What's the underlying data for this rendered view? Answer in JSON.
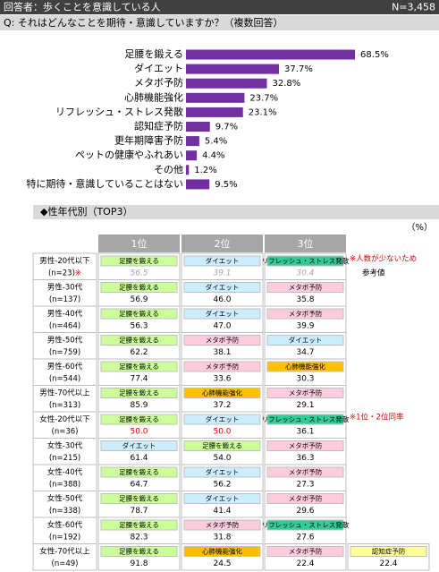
{
  "header": {
    "respondent": "回答者：歩くことを意識している人",
    "n": "N=3,458"
  },
  "question": "Q:  それはどんなことを期待・意識していますか？（複数回答）",
  "chart_data": {
    "type": "bar",
    "orientation": "horizontal",
    "color": "#7030a0",
    "categories": [
      "足腰を鍛える",
      "ダイエット",
      "メタボ予防",
      "心肺機能強化",
      "リフレッシュ・ストレス発散",
      "認知症予防",
      "更年期障害予防",
      "ペットの健康やふれあい",
      "その他",
      "特に期待・意識していることはない"
    ],
    "values": [
      68.5,
      37.7,
      32.8,
      23.7,
      23.1,
      9.7,
      5.4,
      4.4,
      1.2,
      9.5
    ],
    "value_labels": [
      "68.5%",
      "37.7%",
      "32.8%",
      "23.7%",
      "23.1%",
      "9.7%",
      "5.4%",
      "4.4%",
      "1.2%",
      "9.5%"
    ]
  },
  "section_title": "◆性年代別（TOP3）",
  "unit": "（%）",
  "table": {
    "columns": [
      "1位",
      "2位",
      "3位"
    ],
    "rows": [
      {
        "label": "男性-20代以下",
        "n": "(n=23)",
        "mark": "※",
        "value_color": "#a6a6a6",
        "note": [
          "※人数が少ないため",
          "参考値"
        ],
        "note_colors": [
          "#e00000",
          "#000000"
        ],
        "cells": [
          {
            "item": "足腰を鍛える",
            "value": "56.5",
            "color": "#ccff99"
          },
          {
            "item": "ダイエット",
            "value": "39.1",
            "color": "#ccecff"
          },
          {
            "item": "リフレッシュ・ストレス発散",
            "value": "30.4",
            "color": "#33cc99"
          }
        ]
      },
      {
        "label": "男性-30代",
        "n": "(n=137)",
        "cells": [
          {
            "item": "足腰を鍛える",
            "value": "56.9",
            "color": "#ccff99"
          },
          {
            "item": "ダイエット",
            "value": "46.0",
            "color": "#ccecff"
          },
          {
            "item": "メタボ予防",
            "value": "35.8",
            "color": "#ffccdd"
          }
        ]
      },
      {
        "label": "男性-40代",
        "n": "(n=464)",
        "cells": [
          {
            "item": "足腰を鍛える",
            "value": "56.3",
            "color": "#ccff99"
          },
          {
            "item": "ダイエット",
            "value": "47.0",
            "color": "#ccecff"
          },
          {
            "item": "メタボ予防",
            "value": "39.9",
            "color": "#ffccdd"
          }
        ]
      },
      {
        "label": "男性-50代",
        "n": "(n=759)",
        "cells": [
          {
            "item": "足腰を鍛える",
            "value": "62.2",
            "color": "#ccff99"
          },
          {
            "item": "メタボ予防",
            "value": "38.1",
            "color": "#ffccdd"
          },
          {
            "item": "ダイエット",
            "value": "34.7",
            "color": "#ccecff"
          }
        ]
      },
      {
        "label": "男性-60代",
        "n": "(n=544)",
        "cells": [
          {
            "item": "足腰を鍛える",
            "value": "77.4",
            "color": "#ccff99"
          },
          {
            "item": "メタボ予防",
            "value": "33.6",
            "color": "#ffccdd"
          },
          {
            "item": "心肺機能強化",
            "value": "30.3",
            "color": "#ffc000"
          }
        ]
      },
      {
        "label": "男性-70代以上",
        "n": "(n=313)",
        "cells": [
          {
            "item": "足腰を鍛える",
            "value": "85.9",
            "color": "#ccff99"
          },
          {
            "item": "心肺機能強化",
            "value": "37.2",
            "color": "#ffc000"
          },
          {
            "item": "メタボ予防",
            "value": "29.1",
            "color": "#ffccdd"
          }
        ]
      },
      {
        "label": "女性-20代以下",
        "n": "(n=36)",
        "note": [
          "※1位・2位同率"
        ],
        "note_colors": [
          "#e00000"
        ],
        "cells": [
          {
            "item": "足腰を鍛える",
            "value": "50.0",
            "color": "#ccff99",
            "value_color": "#e00000"
          },
          {
            "item": "ダイエット",
            "value": "50.0",
            "color": "#ccecff",
            "value_color": "#e00000"
          },
          {
            "item": "リフレッシュ・ストレス発散",
            "value": "36.1",
            "color": "#33cc99"
          }
        ]
      },
      {
        "label": "女性-30代",
        "n": "(n=215)",
        "cells": [
          {
            "item": "ダイエット",
            "value": "61.4",
            "color": "#ccecff"
          },
          {
            "item": "足腰を鍛える",
            "value": "54.0",
            "color": "#ccff99"
          },
          {
            "item": "メタボ予防",
            "value": "36.3",
            "color": "#ffccdd"
          }
        ]
      },
      {
        "label": "女性-40代",
        "n": "(n=388)",
        "cells": [
          {
            "item": "足腰を鍛える",
            "value": "64.7",
            "color": "#ccff99"
          },
          {
            "item": "ダイエット",
            "value": "56.2",
            "color": "#ccecff"
          },
          {
            "item": "メタボ予防",
            "value": "27.3",
            "color": "#ffccdd"
          }
        ]
      },
      {
        "label": "女性-50代",
        "n": "(n=338)",
        "cells": [
          {
            "item": "足腰を鍛える",
            "value": "78.7",
            "color": "#ccff99"
          },
          {
            "item": "ダイエット",
            "value": "41.4",
            "color": "#ccecff"
          },
          {
            "item": "メタボ予防",
            "value": "29.6",
            "color": "#ffccdd"
          }
        ]
      },
      {
        "label": "女性-60代",
        "n": "(n=192)",
        "cells": [
          {
            "item": "足腰を鍛える",
            "value": "82.3",
            "color": "#ccff99"
          },
          {
            "item": "メタボ予防",
            "value": "31.8",
            "color": "#ffccdd"
          },
          {
            "item": "リフレッシュ・ストレス発散",
            "value": "27.6",
            "color": "#33cc99"
          }
        ]
      },
      {
        "label": "女性-70代以上",
        "n": "(n=49)",
        "cells": [
          {
            "item": "足腰を鍛える",
            "value": "91.8",
            "color": "#ccff99"
          },
          {
            "item": "心肺機能強化",
            "value": "24.5",
            "color": "#ffc000"
          },
          {
            "item": "メタボ予防",
            "value": "22.4",
            "color": "#ffccdd"
          },
          {
            "item": "認知症予防",
            "value": "22.4",
            "color": "#ffff99"
          }
        ]
      }
    ]
  }
}
